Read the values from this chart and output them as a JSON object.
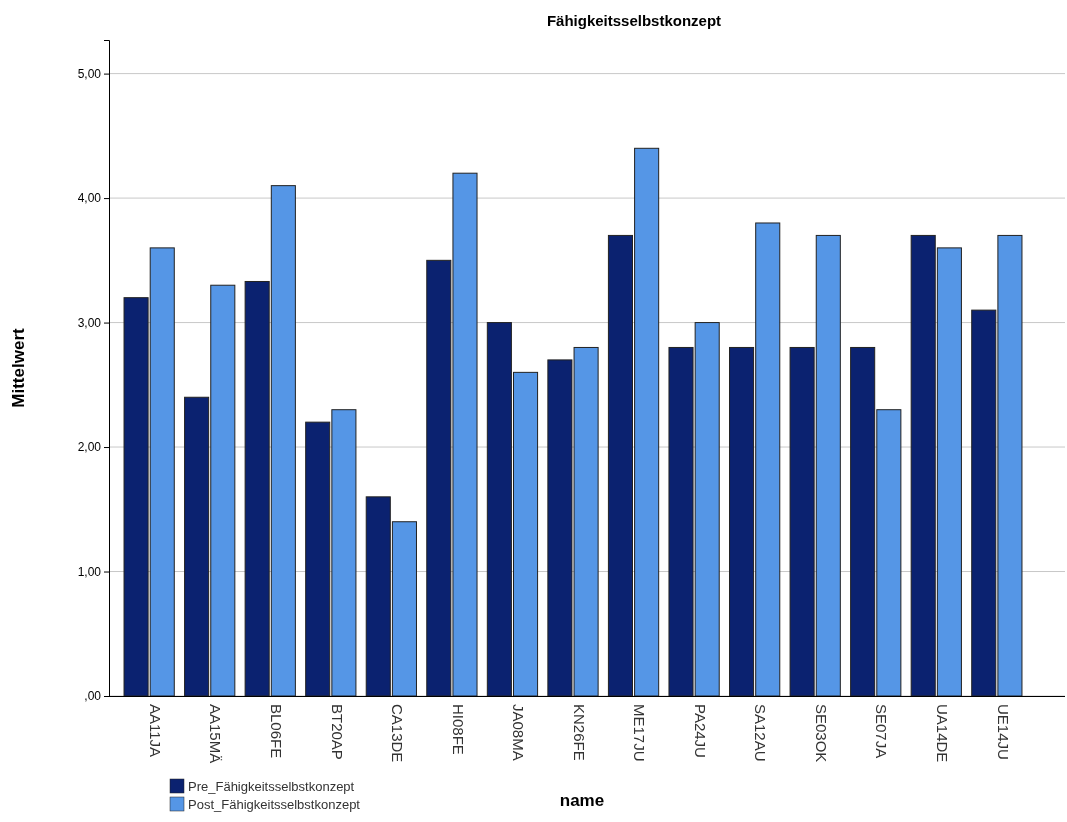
{
  "chart_data": {
    "type": "bar",
    "title": "Fähigkeitsselbstkonzept",
    "xlabel": "name",
    "ylabel": "Mittelwert",
    "categories": [
      "AA11JA",
      "AA15MÄ",
      "BL06FE",
      "BT20AP",
      "CA13DE",
      "HI08FE",
      "JA08MA",
      "KN26FE",
      "ME17JU",
      "PA24JU",
      "SA12AU",
      "SE03OK",
      "SE07JA",
      "UA14DE",
      "UE14JU"
    ],
    "series": [
      {
        "name": "Pre_Fähigkeitsselbstkonzept",
        "color": "#0b2270",
        "values": [
          3.2,
          2.4,
          3.33,
          2.2,
          1.6,
          3.5,
          3.0,
          2.7,
          3.7,
          2.8,
          2.8,
          2.8,
          2.8,
          3.7,
          3.1
        ]
      },
      {
        "name": "Post_Fähigkeitsselbstkonzept",
        "color": "#5596e6",
        "values": [
          3.6,
          3.3,
          4.1,
          2.3,
          1.4,
          4.2,
          2.6,
          2.8,
          4.4,
          3.0,
          3.8,
          3.7,
          2.3,
          3.6,
          3.7
        ]
      }
    ],
    "ylim": [
      0,
      5.27
    ],
    "yticks": [
      {
        "value": 0,
        "label": ",00"
      },
      {
        "value": 1,
        "label": "1,00"
      },
      {
        "value": 2,
        "label": "2,00"
      },
      {
        "value": 3,
        "label": "3,00"
      },
      {
        "value": 4,
        "label": "4,00"
      },
      {
        "value": 5,
        "label": "5,00"
      }
    ],
    "grid": "y",
    "legend": "bottom left"
  }
}
